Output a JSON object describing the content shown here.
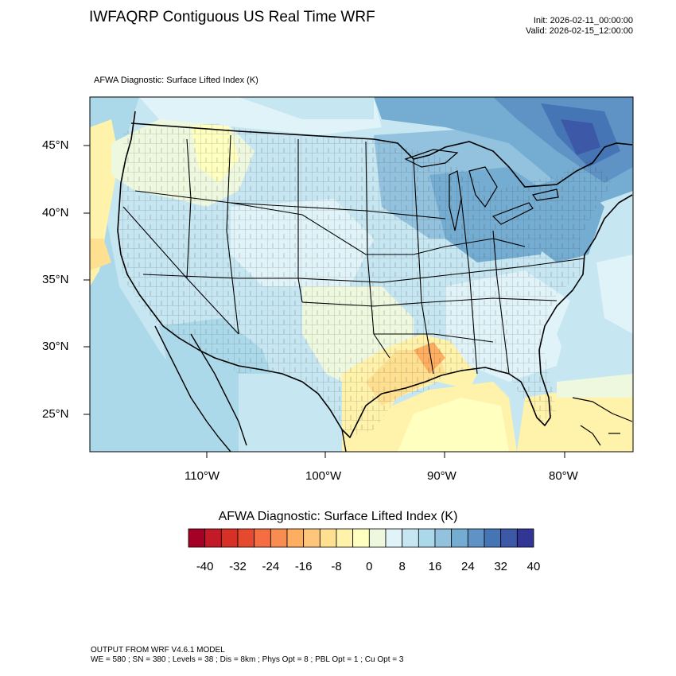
{
  "header": {
    "title": "IWFAQRP Contiguous US Real Time WRF",
    "init": "Init: 2026-02-11_00:00:00",
    "valid": "Valid: 2026-02-15_12:00:00"
  },
  "map": {
    "subtitle": "AFWA Diagnostic: Surface Lifted Index   (K)",
    "lat_labels": [
      "45°N",
      "40°N",
      "35°N",
      "30°N",
      "25°N"
    ],
    "lon_labels": [
      "110°W",
      "100°W",
      "90°W",
      "80°W"
    ]
  },
  "colorbar": {
    "title": "AFWA Diagnostic: Surface Lifted Index  (K)",
    "labels": [
      "-40",
      "-32",
      "-24",
      "-16",
      "-8",
      "0",
      "8",
      "16",
      "24",
      "32",
      "40"
    ],
    "colors": [
      "#a50026",
      "#c21b27",
      "#d73027",
      "#e54a2e",
      "#f46d43",
      "#f88d52",
      "#fdae61",
      "#fec67a",
      "#fee090",
      "#fff2aa",
      "#ffffbf",
      "#eef8df",
      "#e0f3f8",
      "#c6e6f1",
      "#abd9e9",
      "#92c2de",
      "#74add1",
      "#5f93c5",
      "#4575b4",
      "#3d58a7",
      "#313695"
    ]
  },
  "footer": {
    "line1": "OUTPUT FROM WRF V4.6.1 MODEL",
    "line2": "WE = 580 ; SN = 380 ; Levels = 38 ; Dis = 8km ; Phys Opt = 8 ; PBL Opt = 1 ; Cu Opt = 3"
  }
}
